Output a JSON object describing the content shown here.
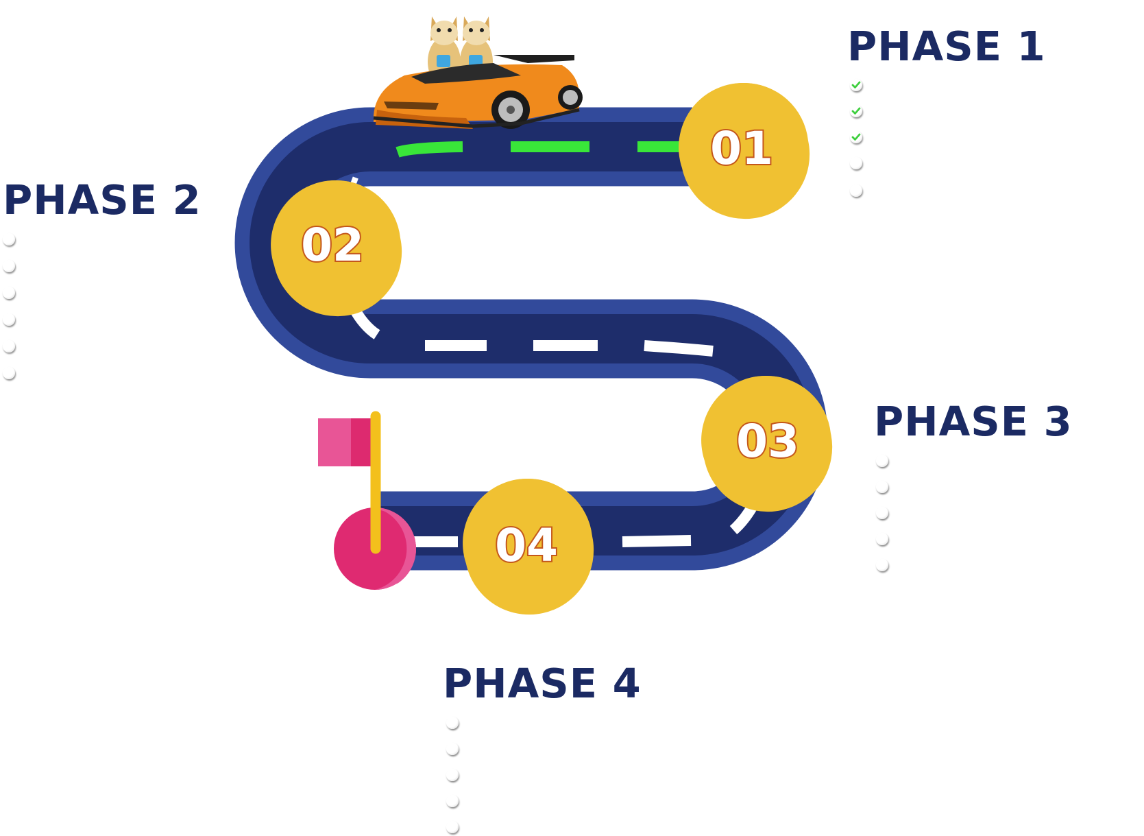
{
  "colors": {
    "road": "#1e2d6b",
    "road_edge": "#324a9b",
    "dash_done": "#39e639",
    "dash": "#ffffff",
    "coin": "#f0c132",
    "coin_shade": "#e6a623",
    "number_outline": "#c4571b",
    "title": "#1b2a63",
    "check": "#3ecf3e",
    "flag": "#e14d8c",
    "pole": "#f3c01c"
  },
  "icons": {
    "car": "sports-car-icon",
    "mascots": "cat-mascot-icon",
    "flag": "finish-flag-icon",
    "check": "checkmark-icon",
    "empty_bullet": "empty-bullet-icon"
  },
  "milestones": [
    {
      "number": "01"
    },
    {
      "number": "02"
    },
    {
      "number": "03"
    },
    {
      "number": "04"
    }
  ],
  "phases": [
    {
      "title": "PHASE 1",
      "items": [
        {
          "done": true
        },
        {
          "done": true
        },
        {
          "done": true
        },
        {
          "done": false
        },
        {
          "done": false
        }
      ]
    },
    {
      "title": "PHASE 2",
      "items": [
        {
          "done": false
        },
        {
          "done": false
        },
        {
          "done": false
        },
        {
          "done": false
        },
        {
          "done": false
        },
        {
          "done": false
        }
      ]
    },
    {
      "title": "PHASE 3",
      "items": [
        {
          "done": false
        },
        {
          "done": false
        },
        {
          "done": false
        },
        {
          "done": false
        },
        {
          "done": false
        }
      ]
    },
    {
      "title": "PHASE 4",
      "items": [
        {
          "done": false
        },
        {
          "done": false
        },
        {
          "done": false
        },
        {
          "done": false
        },
        {
          "done": false
        }
      ]
    }
  ]
}
